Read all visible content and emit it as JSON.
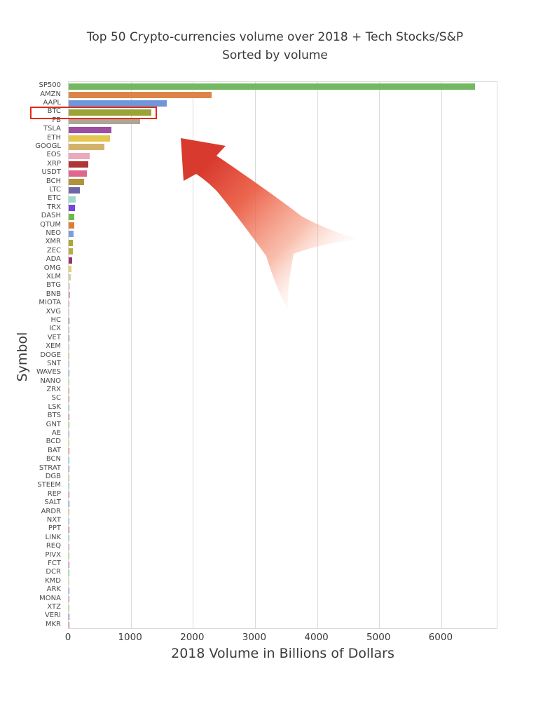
{
  "chart_data": {
    "type": "bar",
    "orientation": "horizontal",
    "title": "Top 50 Crypto-currencies volume over 2018 + Tech Stocks/S&P",
    "subtitle": "Sorted by volume",
    "xlabel": "2018 Volume in Billions of Dollars",
    "ylabel": "Symbol",
    "xlim": [
      0,
      6915
    ],
    "xticks": [
      0,
      1000,
      2000,
      3000,
      4000,
      5000,
      6000
    ],
    "grid": true,
    "legend": false,
    "categories": [
      "SP500",
      "AMZN",
      "AAPL",
      "BTC",
      "FB",
      "TSLA",
      "ETH",
      "GOOGL",
      "EOS",
      "XRP",
      "USDT",
      "BCH",
      "LTC",
      "ETC",
      "TRX",
      "DASH",
      "QTUM",
      "NEO",
      "XMR",
      "ZEC",
      "ADA",
      "OMG",
      "XLM",
      "BTG",
      "BNB",
      "MIOTA",
      "XVG",
      "HC",
      "ICX",
      "VET",
      "XEM",
      "DOGE",
      "SNT",
      "WAVES",
      "NANO",
      "ZRX",
      "SC",
      "LSK",
      "BTS",
      "GNT",
      "AE",
      "BCD",
      "BAT",
      "BCN",
      "STRAT",
      "DGB",
      "STEEM",
      "REP",
      "SALT",
      "ARDR",
      "NXT",
      "PPT",
      "LINK",
      "REQ",
      "PIVX",
      "FCT",
      "DCR",
      "KMD",
      "ARK",
      "MONA",
      "XTZ",
      "VERI",
      "MKR"
    ],
    "values": [
      6540,
      2300,
      1575,
      1330,
      1150,
      685,
      670,
      570,
      335,
      320,
      290,
      245,
      180,
      108,
      103,
      95,
      92,
      80,
      72,
      70,
      62,
      45,
      35,
      26,
      22,
      16,
      13,
      11,
      10,
      9,
      7,
      6,
      5,
      5,
      4,
      4,
      3.5,
      3,
      3,
      2.5,
      2.5,
      2,
      2,
      1.8,
      1.6,
      1.4,
      1.3,
      1.2,
      1,
      0.9,
      0.8,
      0.8,
      0.7,
      0.6,
      0.6,
      0.5,
      0.5,
      0.4,
      0.4,
      0.3,
      0.3,
      0.2,
      0.2
    ],
    "bar_colors": [
      "#74b862",
      "#de8347",
      "#6e96d8",
      "#9ca335",
      "#aba695",
      "#9b4fa0",
      "#e5c64f",
      "#d2b26a",
      "#eba9bb",
      "#b03336",
      "#e0668e",
      "#b29339",
      "#6f66a8",
      "#9fd8cf",
      "#7348d8",
      "#71b74a",
      "#dd7f35",
      "#7b9fd9",
      "#a8a832",
      "#b5ad4a",
      "#9b3070",
      "#ded273",
      "#cfd0a2",
      "#ecc9d4",
      "#d9a3a0",
      "#c98ab4",
      "#d6c9b0",
      "#8a4a42",
      "#8fa8cf",
      "#6a6a9a",
      "#bdbdbd",
      "#c9b458",
      "#7fc4c9",
      "#4a90d9",
      "#9ad98a",
      "#d98a4a",
      "#b86a8f",
      "#6ab8a8",
      "#c94a6a",
      "#8ab84a",
      "#b88ad9",
      "#d9d94a",
      "#d96a4a",
      "#4ab8d9",
      "#8f6ab8",
      "#b8b86a",
      "#6ad98a",
      "#d94a8f",
      "#4a6ad9",
      "#d9b84a",
      "#6ab8d9",
      "#b84a4a",
      "#4ad9b8",
      "#d98ab8",
      "#8ad94a",
      "#b84ad9",
      "#4ad96a",
      "#d9d98a",
      "#4a8fd9",
      "#d96a8f",
      "#8fd94a",
      "#6a4ab8",
      "#d94a4a"
    ],
    "annotations": {
      "highlight_box": {
        "target": "BTC",
        "color": "#e52a1b"
      },
      "arrow": {
        "points_to": "BTC",
        "head_color": "#d93a2e",
        "style": "tapered tail fading to white",
        "direction": "up-left"
      }
    },
    "style": {
      "grid_color": "#dadada",
      "text_color": "#3b3b3b",
      "background": "#ffffff"
    }
  }
}
